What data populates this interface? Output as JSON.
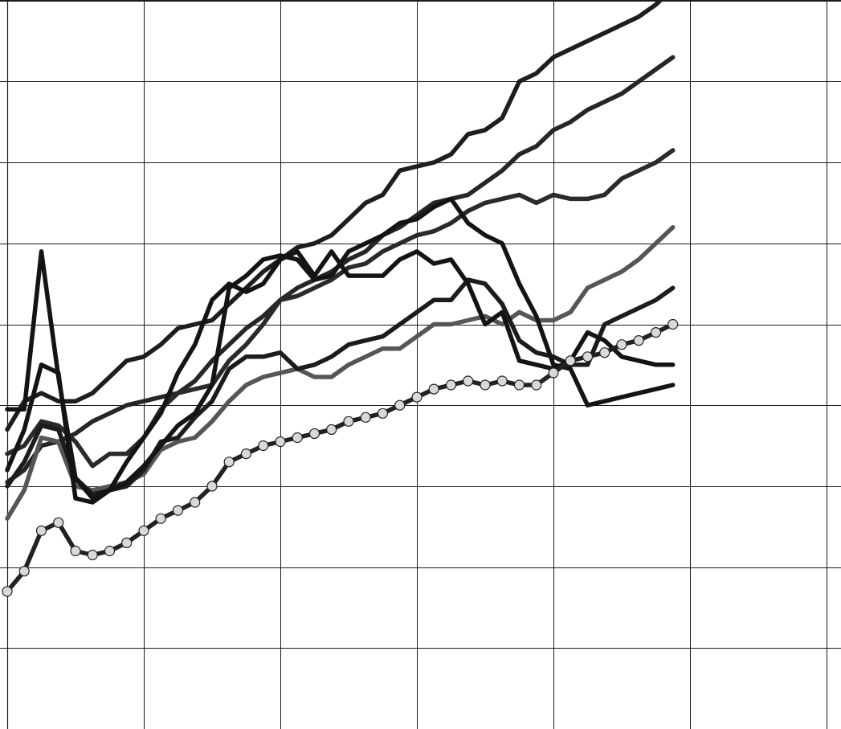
{
  "chart_data": {
    "type": "line",
    "title": "",
    "xlabel": "",
    "ylabel": "",
    "xlim": [
      0,
      39
    ],
    "ylim": [
      0,
      9
    ],
    "x_grid_step": 8,
    "y_grid_step": 1,
    "grid": true,
    "legend": "none",
    "series": [
      {
        "color": "#1e1e1e",
        "marker": "none",
        "x": [
          0,
          1,
          2,
          3,
          4,
          5,
          6,
          7,
          8,
          9,
          10,
          11,
          12,
          13,
          14,
          15,
          16,
          17,
          18,
          19,
          20,
          21,
          22,
          23,
          24,
          25,
          26,
          27,
          28,
          29,
          30,
          31,
          32,
          33,
          34,
          35,
          36,
          37,
          38,
          39
        ],
        "values": [
          3.7,
          4.05,
          4.15,
          4.05,
          4.05,
          4.15,
          4.35,
          4.55,
          4.6,
          4.75,
          4.95,
          5.0,
          5.05,
          5.25,
          5.45,
          5.65,
          5.8,
          5.95,
          6.0,
          6.1,
          6.3,
          6.5,
          6.6,
          6.9,
          6.95,
          7.0,
          7.1,
          7.35,
          7.4,
          7.55,
          8.0,
          8.1,
          8.3,
          8.4,
          8.5,
          8.6,
          8.7,
          8.8,
          8.95,
          9.15
        ]
      },
      {
        "color": "#262626",
        "marker": "none",
        "x": [
          0,
          1,
          2,
          3,
          4,
          5,
          6,
          7,
          8,
          9,
          10,
          11,
          12,
          13,
          14,
          15,
          16,
          17,
          18,
          19,
          20,
          21,
          22,
          23,
          24,
          25,
          26,
          27,
          28,
          29,
          30,
          31,
          32,
          33,
          34,
          35,
          36,
          37,
          38,
          39
        ],
        "values": [
          3.05,
          3.2,
          3.5,
          3.55,
          3.65,
          3.8,
          3.9,
          4.0,
          4.05,
          4.1,
          4.15,
          4.3,
          4.55,
          4.75,
          4.95,
          5.1,
          5.3,
          5.45,
          5.55,
          5.65,
          5.8,
          5.9,
          6.1,
          6.2,
          6.35,
          6.5,
          6.55,
          6.6,
          6.75,
          6.9,
          7.1,
          7.2,
          7.4,
          7.5,
          7.65,
          7.75,
          7.85,
          8.0,
          8.15,
          8.3
        ]
      },
      {
        "color": "#2a2a2a",
        "marker": "none",
        "x": [
          0,
          1,
          2,
          3,
          4,
          5,
          6,
          7,
          8,
          9,
          10,
          11,
          12,
          13,
          14,
          15,
          16,
          17,
          18,
          19,
          20,
          21,
          22,
          23,
          24,
          25,
          26,
          27,
          28,
          29,
          30,
          31,
          32,
          33,
          34,
          35,
          36,
          37,
          38,
          39
        ],
        "values": [
          3.4,
          3.5,
          3.8,
          3.75,
          3.55,
          3.25,
          3.4,
          3.4,
          3.6,
          3.95,
          4.15,
          4.2,
          4.25,
          4.55,
          4.75,
          5.0,
          5.3,
          5.35,
          5.45,
          5.55,
          5.7,
          5.75,
          5.9,
          6.0,
          6.1,
          6.15,
          6.25,
          6.4,
          6.5,
          6.55,
          6.6,
          6.5,
          6.6,
          6.55,
          6.55,
          6.6,
          6.8,
          6.9,
          7.0,
          7.15
        ]
      },
      {
        "color": "#565656",
        "marker": "none",
        "x": [
          0,
          1,
          2,
          3,
          4,
          5,
          6,
          7,
          8,
          9,
          10,
          11,
          12,
          13,
          14,
          15,
          16,
          17,
          18,
          19,
          20,
          21,
          22,
          23,
          24,
          25,
          26,
          27,
          28,
          29,
          30,
          31,
          32,
          33,
          34,
          35,
          36,
          37,
          38,
          39
        ],
        "values": [
          2.6,
          2.95,
          3.6,
          3.55,
          3.0,
          2.95,
          3.0,
          3.05,
          3.15,
          3.45,
          3.55,
          3.6,
          3.8,
          4.05,
          4.25,
          4.35,
          4.4,
          4.45,
          4.35,
          4.35,
          4.5,
          4.6,
          4.7,
          4.7,
          4.85,
          5.0,
          5.0,
          5.05,
          5.1,
          5.0,
          5.15,
          5.05,
          5.05,
          5.15,
          5.45,
          5.55,
          5.65,
          5.8,
          6.0,
          6.2
        ]
      },
      {
        "color": "#1c1c1c",
        "marker": "none",
        "x": [
          0,
          1,
          2,
          3,
          4,
          5,
          6,
          7,
          8,
          9,
          10,
          11,
          12,
          13,
          14,
          15,
          16,
          17,
          18,
          19,
          20,
          21,
          22,
          23,
          24,
          25,
          26,
          27,
          28,
          29,
          30,
          31,
          32,
          33,
          34,
          35,
          36,
          37,
          38,
          39
        ],
        "values": [
          3.0,
          3.3,
          3.75,
          3.7,
          3.1,
          2.9,
          2.95,
          3.0,
          3.2,
          3.55,
          3.6,
          3.85,
          4.05,
          4.45,
          4.6,
          4.6,
          4.65,
          4.45,
          4.5,
          4.6,
          4.75,
          4.8,
          4.85,
          5.0,
          5.15,
          5.3,
          5.3,
          5.55,
          5.5,
          5.25,
          4.8,
          4.65,
          4.6,
          4.5,
          4.5,
          5.0,
          5.1,
          5.2,
          5.3,
          5.45
        ]
      },
      {
        "color": "#141414",
        "marker": "none",
        "x": [
          0,
          1,
          2,
          3,
          4,
          5,
          6,
          7,
          8,
          9,
          10,
          11,
          12,
          13,
          14,
          15,
          16,
          17,
          18,
          19,
          20,
          21,
          22,
          23,
          24,
          25,
          26,
          27,
          28,
          29,
          30,
          31,
          32,
          33,
          34,
          35,
          36,
          37,
          38,
          39
        ],
        "values": [
          3.2,
          3.7,
          4.5,
          4.4,
          2.85,
          2.8,
          2.95,
          3.3,
          3.6,
          3.9,
          4.4,
          4.75,
          5.3,
          5.5,
          5.4,
          5.5,
          5.8,
          5.9,
          5.6,
          5.9,
          5.6,
          5.6,
          5.6,
          5.8,
          5.9,
          5.75,
          5.8,
          5.5,
          5.0,
          5.15,
          4.55,
          4.5,
          4.45,
          4.55,
          4.9,
          4.8,
          4.6,
          4.55,
          4.5,
          4.5
        ]
      },
      {
        "color": "#141414",
        "marker": "none",
        "x": [
          0,
          1,
          2,
          3,
          4,
          5,
          6,
          7,
          8,
          9,
          10,
          11,
          12,
          13,
          14,
          15,
          16,
          17,
          18,
          19,
          20,
          21,
          22,
          23,
          24,
          25,
          26,
          27,
          28,
          29,
          30,
          31,
          32,
          33,
          34,
          35,
          36,
          37,
          38,
          39
        ],
        "values": [
          3.95,
          3.95,
          5.9,
          4.35,
          3.1,
          2.85,
          2.95,
          3.05,
          3.25,
          3.5,
          3.75,
          3.9,
          4.25,
          5.45,
          5.6,
          5.8,
          5.85,
          5.8,
          5.55,
          5.6,
          5.9,
          6.0,
          6.1,
          6.25,
          6.3,
          6.45,
          6.55,
          6.25,
          6.1,
          6.0,
          5.5,
          5.1,
          4.5,
          4.45,
          4.0,
          4.05,
          4.1,
          4.15,
          4.2,
          4.25
        ]
      },
      {
        "color": "#222222",
        "marker": "circle",
        "marker_fill": "#d9d9d9",
        "x": [
          0,
          1,
          2,
          3,
          4,
          5,
          6,
          7,
          8,
          9,
          10,
          11,
          12,
          13,
          14,
          15,
          16,
          17,
          18,
          19,
          20,
          21,
          22,
          23,
          24,
          25,
          26,
          27,
          28,
          29,
          30,
          31,
          32,
          33,
          34,
          35,
          36,
          37,
          38,
          39
        ],
        "values": [
          1.7,
          1.95,
          2.45,
          2.55,
          2.2,
          2.15,
          2.2,
          2.3,
          2.45,
          2.6,
          2.7,
          2.8,
          3.0,
          3.3,
          3.4,
          3.5,
          3.55,
          3.6,
          3.65,
          3.7,
          3.8,
          3.85,
          3.9,
          4.0,
          4.1,
          4.2,
          4.25,
          4.3,
          4.25,
          4.3,
          4.25,
          4.25,
          4.4,
          4.55,
          4.6,
          4.65,
          4.75,
          4.8,
          4.9,
          5.0
        ]
      }
    ]
  }
}
